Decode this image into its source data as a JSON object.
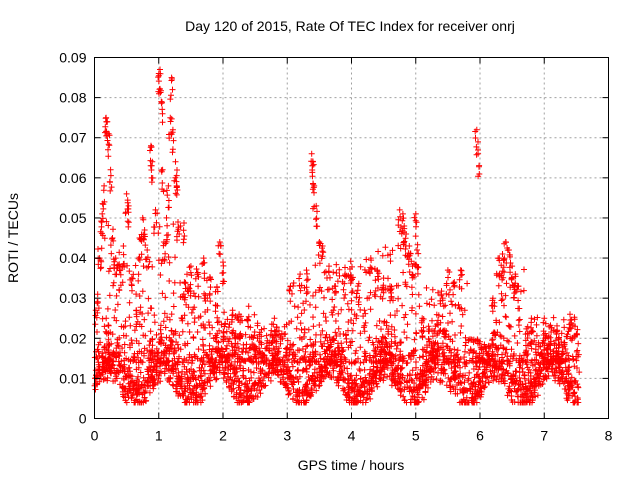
{
  "chart_data": {
    "type": "scatter",
    "title": "Day 120 of 2015, Rate Of TEC Index for receiver onrj",
    "xlabel": "GPS time / hours",
    "ylabel": "ROTI / TECUs",
    "xlim": [
      0,
      8
    ],
    "ylim": [
      0,
      0.09
    ],
    "x_ticks": [
      "0",
      "1",
      "2",
      "3",
      "4",
      "5",
      "6",
      "7",
      "8"
    ],
    "y_ticks": [
      "0",
      "0.01",
      "0.02",
      "0.03",
      "0.04",
      "0.05",
      "0.06",
      "0.07",
      "0.08",
      "0.09"
    ],
    "grid": true,
    "marker": "+",
    "series_color": "#ff0000",
    "x_range_data": [
      0,
      7.55
    ],
    "baseline_band": [
      0.004,
      0.02
    ],
    "peaks": [
      {
        "x": 0.02,
        "y": 0.027
      },
      {
        "x": 0.05,
        "y": 0.031
      },
      {
        "x": 0.08,
        "y": 0.04
      },
      {
        "x": 0.12,
        "y": 0.051
      },
      {
        "x": 0.15,
        "y": 0.058
      },
      {
        "x": 0.18,
        "y": 0.075
      },
      {
        "x": 0.2,
        "y": 0.074
      },
      {
        "x": 0.22,
        "y": 0.071
      },
      {
        "x": 0.25,
        "y": 0.062
      },
      {
        "x": 0.28,
        "y": 0.045
      },
      {
        "x": 0.33,
        "y": 0.04
      },
      {
        "x": 0.4,
        "y": 0.037
      },
      {
        "x": 0.45,
        "y": 0.043
      },
      {
        "x": 0.5,
        "y": 0.056
      },
      {
        "x": 0.53,
        "y": 0.053
      },
      {
        "x": 0.58,
        "y": 0.035
      },
      {
        "x": 0.65,
        "y": 0.027
      },
      {
        "x": 0.7,
        "y": 0.045
      },
      {
        "x": 0.75,
        "y": 0.05
      },
      {
        "x": 0.78,
        "y": 0.047
      },
      {
        "x": 0.82,
        "y": 0.042
      },
      {
        "x": 0.88,
        "y": 0.068
      },
      {
        "x": 0.9,
        "y": 0.064
      },
      {
        "x": 0.95,
        "y": 0.052
      },
      {
        "x": 1.0,
        "y": 0.086
      },
      {
        "x": 1.02,
        "y": 0.087
      },
      {
        "x": 1.04,
        "y": 0.079
      },
      {
        "x": 1.06,
        "y": 0.062
      },
      {
        "x": 1.08,
        "y": 0.044
      },
      {
        "x": 1.12,
        "y": 0.05
      },
      {
        "x": 1.15,
        "y": 0.058
      },
      {
        "x": 1.18,
        "y": 0.075
      },
      {
        "x": 1.2,
        "y": 0.085
      },
      {
        "x": 1.22,
        "y": 0.072
      },
      {
        "x": 1.26,
        "y": 0.064
      },
      {
        "x": 1.28,
        "y": 0.058
      },
      {
        "x": 1.3,
        "y": 0.049
      },
      {
        "x": 1.4,
        "y": 0.034
      },
      {
        "x": 1.5,
        "y": 0.038
      },
      {
        "x": 1.6,
        "y": 0.036
      },
      {
        "x": 1.7,
        "y": 0.04
      },
      {
        "x": 1.8,
        "y": 0.035
      },
      {
        "x": 1.95,
        "y": 0.044
      },
      {
        "x": 2.0,
        "y": 0.039
      },
      {
        "x": 2.15,
        "y": 0.027
      },
      {
        "x": 2.25,
        "y": 0.026
      },
      {
        "x": 2.4,
        "y": 0.028
      },
      {
        "x": 2.8,
        "y": 0.025
      },
      {
        "x": 3.05,
        "y": 0.033
      },
      {
        "x": 3.2,
        "y": 0.036
      },
      {
        "x": 3.3,
        "y": 0.037
      },
      {
        "x": 3.38,
        "y": 0.066
      },
      {
        "x": 3.4,
        "y": 0.064
      },
      {
        "x": 3.42,
        "y": 0.058
      },
      {
        "x": 3.45,
        "y": 0.053
      },
      {
        "x": 3.5,
        "y": 0.044
      },
      {
        "x": 3.55,
        "y": 0.043
      },
      {
        "x": 3.65,
        "y": 0.038
      },
      {
        "x": 3.75,
        "y": 0.033
      },
      {
        "x": 3.9,
        "y": 0.036
      },
      {
        "x": 4.0,
        "y": 0.035
      },
      {
        "x": 4.1,
        "y": 0.033
      },
      {
        "x": 4.2,
        "y": 0.027
      },
      {
        "x": 4.3,
        "y": 0.04
      },
      {
        "x": 4.4,
        "y": 0.037
      },
      {
        "x": 4.5,
        "y": 0.035
      },
      {
        "x": 4.6,
        "y": 0.033
      },
      {
        "x": 4.75,
        "y": 0.052
      },
      {
        "x": 4.8,
        "y": 0.051
      },
      {
        "x": 4.82,
        "y": 0.048
      },
      {
        "x": 4.85,
        "y": 0.046
      },
      {
        "x": 4.9,
        "y": 0.043
      },
      {
        "x": 4.95,
        "y": 0.038
      },
      {
        "x": 5.0,
        "y": 0.051
      },
      {
        "x": 5.02,
        "y": 0.042
      },
      {
        "x": 5.1,
        "y": 0.025
      },
      {
        "x": 5.2,
        "y": 0.023
      },
      {
        "x": 5.4,
        "y": 0.031
      },
      {
        "x": 5.5,
        "y": 0.037
      },
      {
        "x": 5.6,
        "y": 0.034
      },
      {
        "x": 5.7,
        "y": 0.037
      },
      {
        "x": 5.95,
        "y": 0.072
      },
      {
        "x": 5.97,
        "y": 0.066
      },
      {
        "x": 6.2,
        "y": 0.03
      },
      {
        "x": 6.3,
        "y": 0.04
      },
      {
        "x": 6.35,
        "y": 0.041
      },
      {
        "x": 6.4,
        "y": 0.044
      },
      {
        "x": 6.45,
        "y": 0.042
      },
      {
        "x": 6.5,
        "y": 0.038
      },
      {
        "x": 6.55,
        "y": 0.036
      },
      {
        "x": 6.6,
        "y": 0.033
      },
      {
        "x": 6.8,
        "y": 0.025
      },
      {
        "x": 7.0,
        "y": 0.025
      },
      {
        "x": 7.2,
        "y": 0.022
      },
      {
        "x": 7.4,
        "y": 0.026
      },
      {
        "x": 7.5,
        "y": 0.021
      }
    ],
    "bursts": [
      {
        "x0": 0.05,
        "x1": 0.35,
        "ymax": 0.05
      },
      {
        "x0": 0.35,
        "x1": 0.95,
        "ymax": 0.042
      },
      {
        "x0": 0.95,
        "x1": 1.4,
        "ymax": 0.055
      },
      {
        "x0": 1.4,
        "x1": 2.05,
        "ymax": 0.038
      },
      {
        "x0": 2.05,
        "x1": 3.0,
        "ymax": 0.026
      },
      {
        "x0": 3.0,
        "x1": 3.4,
        "ymax": 0.034
      },
      {
        "x0": 3.4,
        "x1": 4.4,
        "ymax": 0.04
      },
      {
        "x0": 4.4,
        "x1": 5.1,
        "ymax": 0.045
      },
      {
        "x0": 5.1,
        "x1": 5.8,
        "ymax": 0.034
      },
      {
        "x0": 5.8,
        "x1": 6.2,
        "ymax": 0.02
      },
      {
        "x0": 6.2,
        "x1": 6.7,
        "ymax": 0.04
      },
      {
        "x0": 6.7,
        "x1": 7.55,
        "ymax": 0.026
      }
    ]
  }
}
